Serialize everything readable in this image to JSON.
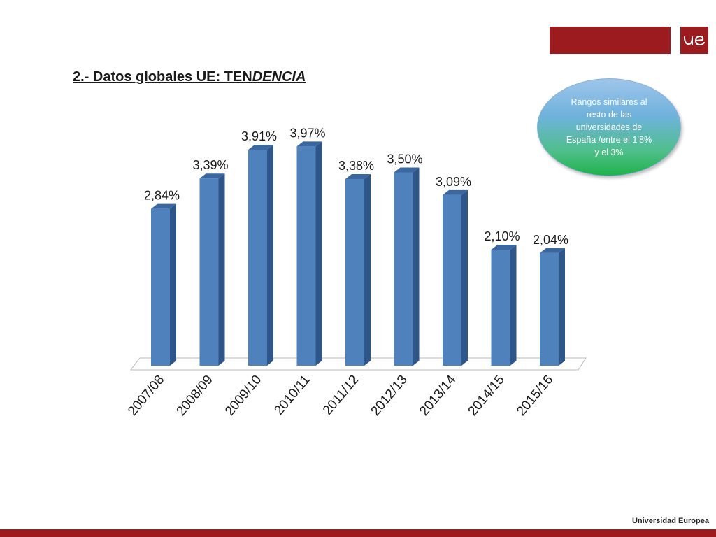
{
  "slide": {
    "title_main": "2.- Datos globales UE: TEN",
    "title_italic": "DENCIA",
    "callout": "Rangos similares al resto de las universidades de España /entre el 1’8% y el 3%",
    "footer": "Universidad Europea",
    "logo_text": "ue"
  },
  "colors": {
    "brand": "#9b1b1f",
    "bar_front": "#4f81bd",
    "bar_side": "#2f5688",
    "bar_top": "#3a67a0"
  },
  "chart_data": {
    "type": "bar",
    "categories": [
      "2007/08",
      "2008/09",
      "2009/10",
      "2010/11",
      "2011/12",
      "2012/13",
      "2013/14",
      "2014/15",
      "2015/16"
    ],
    "values": [
      2.84,
      3.39,
      3.91,
      3.97,
      3.38,
      3.5,
      3.09,
      2.1,
      2.04
    ],
    "data_labels": [
      "2,84%",
      "3,39%",
      "3,91%",
      "3,97%",
      "3,38%",
      "3,50%",
      "3,09%",
      "2,10%",
      "2,04%"
    ],
    "title": "",
    "xlabel": "",
    "ylabel": "",
    "ylim": [
      0,
      4
    ],
    "grid": false,
    "three_d": true
  }
}
